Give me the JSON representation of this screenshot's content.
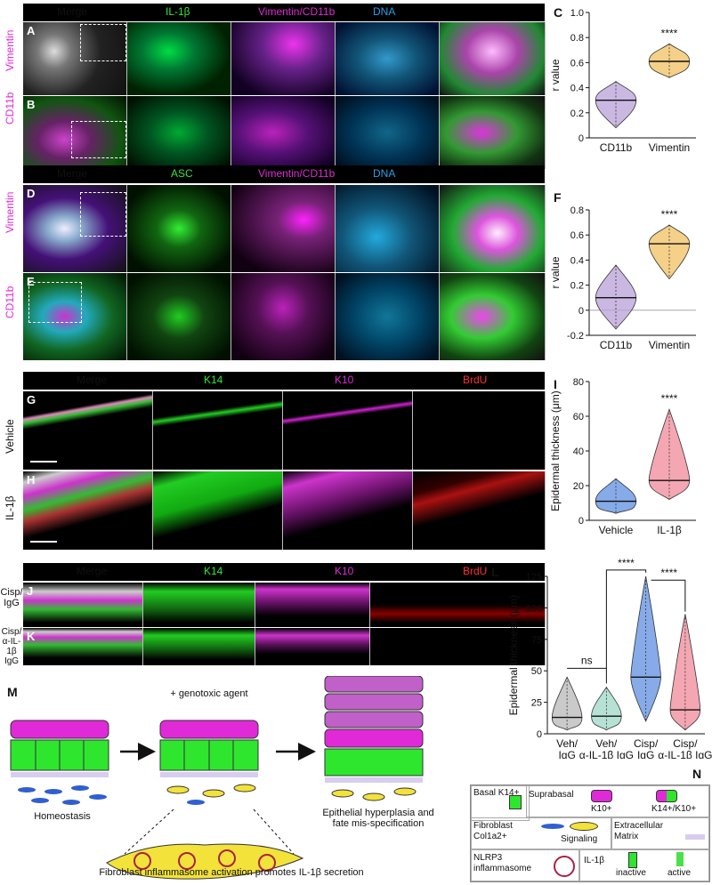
{
  "figureA": {
    "header": [
      "Merge",
      "IL-1β",
      "Vimentin/CD11b",
      "DNA"
    ],
    "header_colors": [
      "#ffffff",
      "#35e635",
      "#e02ad8",
      "#2a9fe8"
    ],
    "row_labels": [
      "Vimentin",
      "CD11b"
    ],
    "panel_letters": [
      "A",
      "B"
    ]
  },
  "figureD": {
    "header": [
      "Merge",
      "ASC",
      "Vimentin/CD11b",
      "DNA"
    ],
    "header_colors": [
      "#ffffff",
      "#35e635",
      "#e02ad8",
      "#2a9fe8"
    ],
    "row_labels": [
      "Vimentin",
      "CD11b"
    ],
    "panel_letters": [
      "D",
      "E"
    ]
  },
  "figureG": {
    "header": [
      "Merge",
      "K14",
      "K10",
      "BrdU"
    ],
    "header_colors": [
      "#ffffff",
      "#35e635",
      "#e02ad8",
      "#ff3030"
    ],
    "row_labels": [
      "Vehicle",
      "IL-1β"
    ],
    "panel_letters": [
      "G",
      "H"
    ]
  },
  "figureJ": {
    "header": [
      "Merge",
      "K14",
      "K10",
      "BrdU"
    ],
    "header_colors": [
      "#ffffff",
      "#35e635",
      "#e02ad8",
      "#ff3030"
    ],
    "row_labels": [
      "Cisp/ IgG",
      "Cisp/ α-IL-1β IgG"
    ],
    "panel_letters": [
      "J",
      "K"
    ]
  },
  "chart_data": [
    {
      "panel": "C",
      "type": "violin",
      "categories": [
        "CD11b",
        "Vimentin"
      ],
      "medians": [
        0.3,
        0.61
      ],
      "ranges": [
        [
          0.08,
          0.45
        ],
        [
          0.48,
          0.75
        ]
      ],
      "colors": [
        "#b9a0d8",
        "#f2c060"
      ],
      "ylabel": "r value",
      "yticks": [
        "0",
        "0.2",
        "0.4",
        "0.6",
        "0.8",
        "1.0"
      ],
      "ylim": [
        0,
        1.0
      ],
      "annotation": "****"
    },
    {
      "panel": "F",
      "type": "violin",
      "categories": [
        "CD11b",
        "Vimentin"
      ],
      "medians": [
        0.1,
        0.53
      ],
      "ranges": [
        [
          -0.15,
          0.36
        ],
        [
          0.25,
          0.68
        ]
      ],
      "colors": [
        "#b9a0d8",
        "#f2c060"
      ],
      "ylabel": "r value",
      "yticks": [
        "-0.2",
        "0",
        "0.2",
        "0.4",
        "0.6",
        "0.8"
      ],
      "ylim": [
        -0.2,
        0.8
      ],
      "annotation": "****"
    },
    {
      "panel": "I",
      "type": "violin",
      "categories": [
        "Vehicle",
        "IL-1β"
      ],
      "medians": [
        11,
        23
      ],
      "ranges": [
        [
          4,
          24
        ],
        [
          12,
          64
        ]
      ],
      "colors": [
        "#5d8fe0",
        "#f08a9a"
      ],
      "ylabel": "Epidermal thickness (μm)",
      "yticks": [
        "0",
        "20",
        "40",
        "60",
        "80"
      ],
      "ylim": [
        0,
        80
      ],
      "annotation": "****"
    },
    {
      "panel": "L",
      "type": "violin",
      "categories": [
        "Veh/ IgG",
        "Veh/ α-IL-1β IgG",
        "Cisp/ IgG",
        "Cisp/ α-IL-1β IgG"
      ],
      "medians": [
        13,
        14,
        45,
        19
      ],
      "ranges": [
        [
          3,
          45
        ],
        [
          3,
          37
        ],
        [
          10,
          125
        ],
        [
          3,
          95
        ]
      ],
      "colors": [
        "#b8b8b8",
        "#9ed8c8",
        "#5d8fe0",
        "#f08a9a"
      ],
      "ylabel": "Epidermal thickness (μm)",
      "yticks": [
        "0",
        "25",
        "50",
        "75",
        "100",
        "125"
      ],
      "ylim": [
        0,
        125
      ],
      "annotations": [
        "ns",
        "****",
        "****"
      ]
    }
  ],
  "diagram": {
    "panel_letter": "M",
    "labels": {
      "genotoxic": "+ genotoxic agent",
      "homeostasis": "Homeostasis",
      "outcome": "Epithelial hyperplasia and fate mis-specification",
      "caption": "Fibroblast inflammasome activation promotes IL-1β secretion"
    }
  },
  "legend": {
    "panel_letter": "N",
    "basal": "Basal K14+",
    "suprabasal": "Suprabasal",
    "k10": "K10+",
    "k14k10": "K14+/K10+",
    "fibroblast": "Fibroblast Col1a2+",
    "signaling": "Signaling",
    "ecm": "Extracellular Matrix",
    "nlrp3": "NLRP3 inflammasome",
    "il1b": "IL-1β",
    "inactive": "inactive",
    "active": "active"
  },
  "colors": {
    "magenta": "#e02ad8",
    "green": "#2ee62e",
    "blue": "#2f6fe0",
    "yellow": "#f2e23a"
  }
}
